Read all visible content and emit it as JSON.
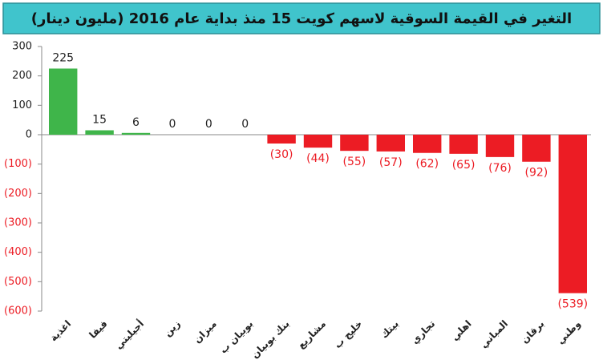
{
  "chart_data": {
    "type": "bar",
    "title": "التغير في القيمة السوقية لاسهم كويت 15 منذ بداية عام 2016 (مليون دينار)",
    "categories": [
      "اغذية",
      "فيفا",
      "أجيليتي",
      "زين",
      "ميزان",
      "بوبيان ب",
      "بنك بوبيان",
      "مشاريع",
      "خليج ب",
      "بيتك",
      "تجاري",
      "اهلي",
      "المباني",
      "برقان",
      "وطني"
    ],
    "values": [
      225,
      15,
      6,
      0,
      0,
      0,
      -30,
      -44,
      -55,
      -57,
      -62,
      -65,
      -76,
      -92,
      -539
    ],
    "value_labels": [
      "225",
      "15",
      "6",
      "0",
      "0",
      "0",
      "(30)",
      "(44)",
      "(55)",
      "(57)",
      "(62)",
      "(65)",
      "(76)",
      "(92)",
      "(539)"
    ],
    "colors": {
      "positive": "#3fb54a",
      "negative": "#ec1c24"
    },
    "ylim": [
      -600,
      300
    ],
    "yticks": [
      300,
      200,
      100,
      0,
      {
        "value": -100,
        "label": "(100)"
      },
      {
        "value": -200,
        "label": "(200)"
      },
      {
        "value": -300,
        "label": "(300)"
      },
      {
        "value": -400,
        "label": "(400)"
      },
      {
        "value": -500,
        "label": "(500)"
      },
      {
        "value": -600,
        "label": "(600)"
      }
    ],
    "grid": false
  }
}
